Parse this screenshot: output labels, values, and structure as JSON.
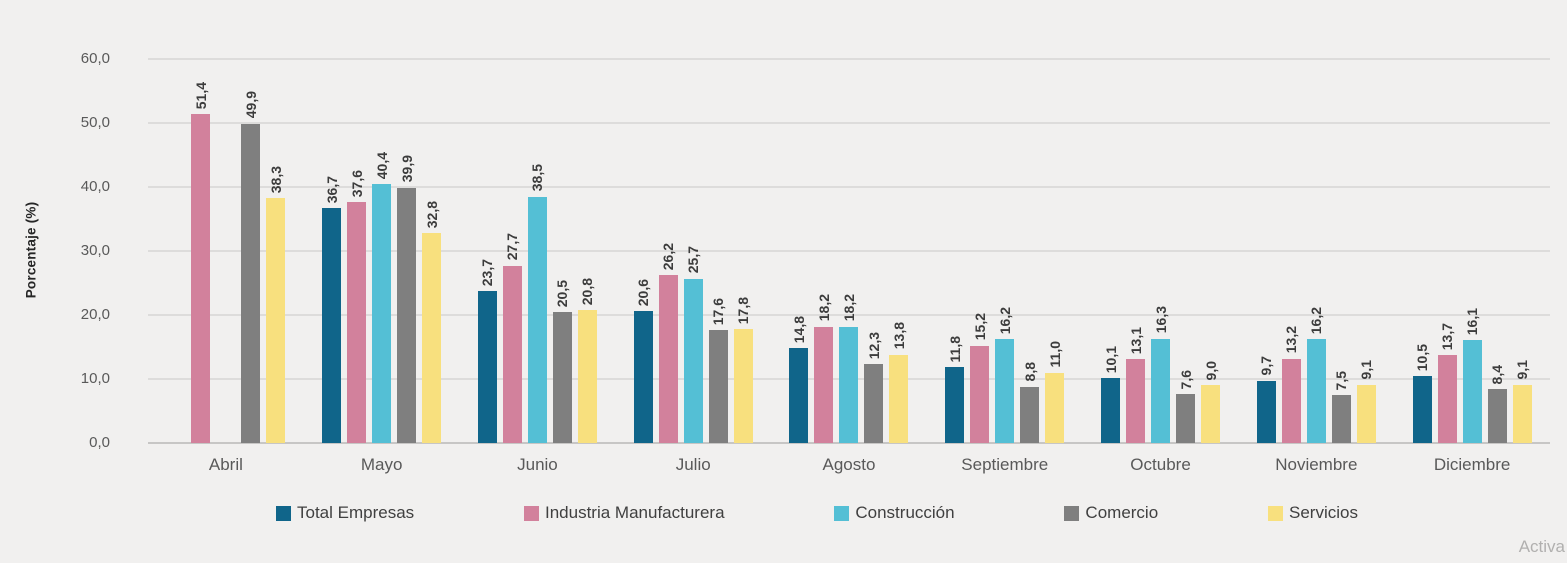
{
  "watermark": "Activa",
  "y_axis": {
    "title": "Porcentaje (%)"
  },
  "chart_data": {
    "type": "bar",
    "title": "",
    "xlabel": "",
    "ylabel": "Porcentaje (%)",
    "ylim": [
      0,
      60
    ],
    "grid": true,
    "legend_position": "bottom",
    "decimal_separator": ",",
    "y_ticks": [
      "60,0",
      "50,0",
      "40,0",
      "30,0",
      "20,0",
      "10,0",
      "0,0"
    ],
    "categories": [
      "Abril",
      "Mayo",
      "Junio",
      "Julio",
      "Agosto",
      "Septiembre",
      "Octubre",
      "Noviembre",
      "Diciembre"
    ],
    "series": [
      {
        "name": "Total Empresas",
        "color": "#10658A",
        "values": [
          null,
          36.7,
          23.7,
          20.6,
          14.8,
          11.8,
          10.1,
          9.7,
          10.5
        ],
        "labels": [
          null,
          "36,7",
          "23,7",
          "20,6",
          "14,8",
          "11,8",
          "10,1",
          "9,7",
          "10,5"
        ]
      },
      {
        "name": "Industria Manufacturera",
        "color": "#D2819C",
        "values": [
          51.4,
          37.6,
          27.7,
          26.2,
          18.2,
          15.2,
          13.1,
          13.2,
          13.7
        ],
        "labels": [
          "51,4",
          "37,6",
          "27,7",
          "26,2",
          "18,2",
          "15,2",
          "13,1",
          "13,2",
          "13,7"
        ]
      },
      {
        "name": "Construcción",
        "color": "#54BFD5",
        "values": [
          null,
          40.4,
          38.5,
          25.7,
          18.2,
          16.2,
          16.3,
          16.2,
          16.1
        ],
        "labels": [
          null,
          "40,4",
          "38,5",
          "25,7",
          "18,2",
          "16,2",
          "16,3",
          "16,2",
          "16,1"
        ]
      },
      {
        "name": "Comercio",
        "color": "#7F7F7F",
        "values": [
          49.9,
          39.9,
          20.5,
          17.6,
          12.3,
          8.8,
          7.6,
          7.5,
          8.4
        ],
        "labels": [
          "49,9",
          "39,9",
          "20,5",
          "17,6",
          "12,3",
          "8,8",
          "7,6",
          "7,5",
          "8,4"
        ]
      },
      {
        "name": "Servicios",
        "color": "#F8E07E",
        "values": [
          38.3,
          32.8,
          20.8,
          17.8,
          13.8,
          11.0,
          9.0,
          9.1,
          9.1
        ],
        "labels": [
          "38,3",
          "32,8",
          "20,8",
          "17,8",
          "13,8",
          "11,0",
          "9,0",
          "9,1",
          "9,1"
        ]
      }
    ],
    "colors": {
      "background": "#F1F0EF",
      "gridline": "#DDDCDB",
      "axis_line": "#C7C6C5",
      "bar_value_label": "#3C3C3C",
      "tick_label": "#595959",
      "watermark": "#B1B0AF"
    }
  }
}
